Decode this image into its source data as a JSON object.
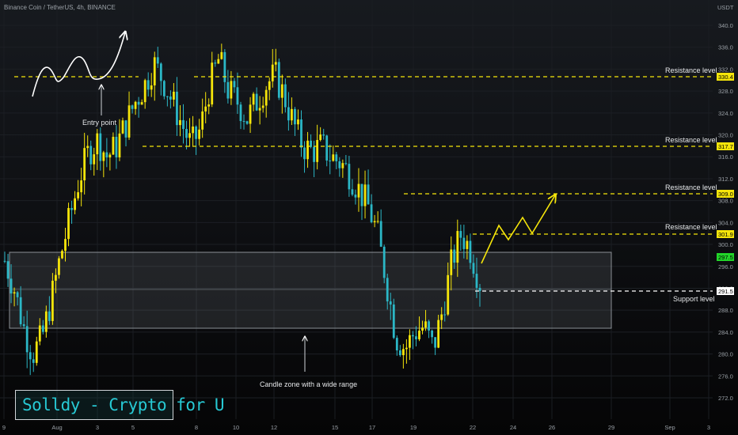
{
  "header": {
    "symbol_line": "Binance Coin / TetherUS, 4h, BINANCE"
  },
  "price_axis": {
    "currency": "USDT",
    "ticks": [
      "340.0",
      "336.0",
      "332.0",
      "328.0",
      "324.0",
      "320.0",
      "316.0",
      "312.0",
      "308.0",
      "304.0",
      "300.0",
      "296.0",
      "292.0",
      "288.0",
      "284.0",
      "280.0",
      "276.0",
      "272.0"
    ]
  },
  "time_axis": {
    "ticks": [
      "9",
      "Aug",
      "3",
      "5",
      "8",
      "10",
      "12",
      "15",
      "17",
      "19",
      "22",
      "24",
      "26",
      "29",
      "Sep",
      "3"
    ]
  },
  "levels": [
    {
      "label": "Resistance level",
      "price": "330.4",
      "color": "#f5e50a"
    },
    {
      "label": "Resistance level",
      "price": "317.7",
      "color": "#f5e50a"
    },
    {
      "label": "Resistance level",
      "price": "309.0",
      "color": "#f5e50a"
    },
    {
      "label": "Resistance level",
      "price": "301.9",
      "color": "#f5e50a"
    },
    {
      "label": "Support level",
      "price": "291.5",
      "color": "#ffffff"
    }
  ],
  "current_price": {
    "price": "297.5",
    "color": "#22d629"
  },
  "annotations": {
    "entry_point": "Entry point",
    "zone": "Candle zone with a wide range"
  },
  "brand": {
    "text": "Solldy - Crypto for U"
  },
  "colors": {
    "bull": "#f5e50a",
    "bear": "#2bb7c6",
    "background": "#000000"
  },
  "chart_data": {
    "type": "candlestick",
    "title": "Binance Coin / TetherUS, 4h, BINANCE",
    "ylim": [
      270,
      343
    ],
    "y_unit": "USDT",
    "ohlc_close_path": [
      297,
      292,
      285,
      280,
      283,
      290,
      298,
      305,
      312,
      317,
      319,
      316,
      318,
      322,
      326,
      329,
      333,
      330,
      326,
      322,
      318,
      321,
      329,
      334,
      328,
      326,
      323,
      326,
      329,
      331,
      327,
      322,
      318,
      317,
      318,
      316,
      315,
      313,
      310,
      307,
      302,
      293,
      283,
      281,
      284,
      285,
      281,
      288,
      297,
      302,
      299,
      293
    ],
    "resistance_levels": [
      330.4,
      317.7,
      309.0,
      301.9
    ],
    "support_level": 291.5,
    "current_price": 297.5,
    "zone_range": [
      285.3,
      298.1
    ]
  }
}
